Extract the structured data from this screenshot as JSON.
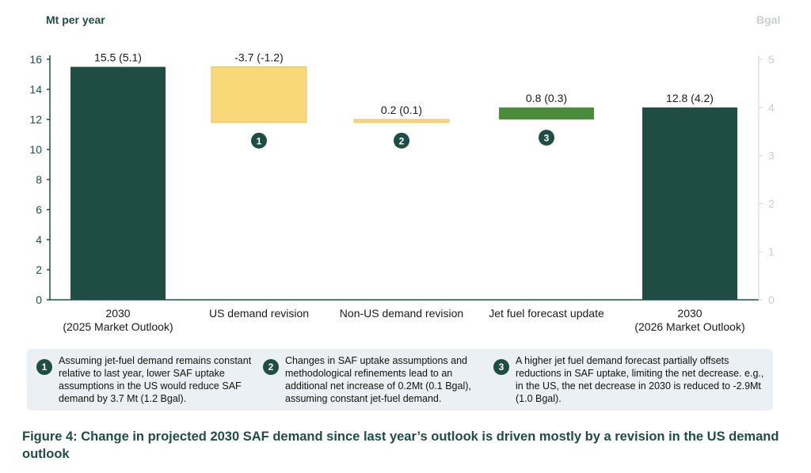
{
  "chart_data": {
    "type": "bar",
    "subtype": "waterfall",
    "ylabel_left": "Mt  per year",
    "ylabel_right": "Bgal",
    "ylim_left": [
      0,
      16
    ],
    "ylim_right": [
      0,
      5
    ],
    "yticks_left": [
      "0",
      "2",
      "4",
      "6",
      "8",
      "10",
      "12",
      "14",
      "16"
    ],
    "yticks_right": [
      "0",
      "1",
      "2",
      "3",
      "4",
      "5"
    ],
    "categories": [
      "2030\n(2025 Market Outlook)",
      "US demand revision",
      "Non-US demand revision",
      "Jet fuel forecast update",
      "2030\n(2026 Market Outlook)"
    ],
    "bars": [
      {
        "kind": "total",
        "start": 0,
        "end": 15.5,
        "label": "15.5 (5.1)",
        "color": "#1f4d43"
      },
      {
        "kind": "delta",
        "start": 15.5,
        "end": 11.8,
        "label": "-3.7 (-1.2)",
        "color": "#f9d87a",
        "marker": "1"
      },
      {
        "kind": "delta",
        "start": 11.8,
        "end": 12.0,
        "label": "0.2 (0.1)",
        "color": "#f9d87a",
        "marker": "2"
      },
      {
        "kind": "delta",
        "start": 12.0,
        "end": 12.8,
        "label": "0.8 (0.3)",
        "color": "#4a8b3c",
        "marker": "3"
      },
      {
        "kind": "total",
        "start": 0,
        "end": 12.8,
        "label": "12.8 (4.2)",
        "color": "#1f4d43"
      }
    ]
  },
  "notes": [
    {
      "num": "1",
      "text": "Assuming jet-fuel demand remains constant relative to last year, lower SAF uptake assumptions in the US would reduce SAF demand by 3.7 Mt (1.2 Bgal)."
    },
    {
      "num": "2",
      "text": "Changes in SAF uptake assumptions and methodological refinements lead to an additional net increase of 0.2Mt (0.1 Bgal), assuming constant jet-fuel demand."
    },
    {
      "num": "3",
      "text": "A higher jet fuel demand forecast partially offsets reductions in SAF uptake, limiting the net decrease. e.g., in the US, the net decrease in 2030 is reduced to -2.9Mt (1.0 Bgal)."
    }
  ],
  "caption": "Figure 4: Change in projected 2030 SAF demand since last year’s outlook is driven mostly by a revision in the US demand outlook"
}
